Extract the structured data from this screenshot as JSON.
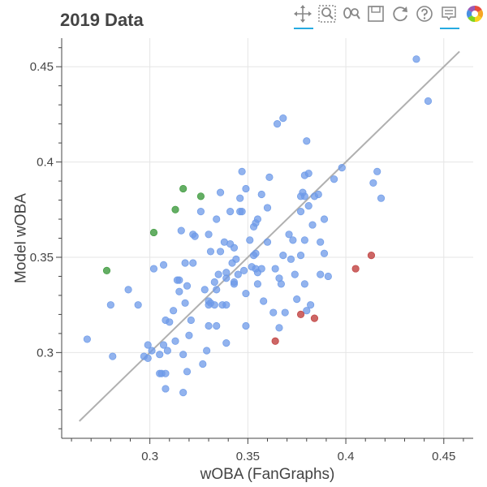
{
  "title": "2019 Data",
  "toolbar": {
    "tools": [
      {
        "icon": "pan-icon",
        "active": true
      },
      {
        "icon": "box-zoom-icon",
        "active": false
      },
      {
        "icon": "wheel-zoom-icon",
        "active": false
      },
      {
        "icon": "save-icon",
        "active": false
      },
      {
        "icon": "reset-icon",
        "active": false
      },
      {
        "icon": "help-icon",
        "active": false
      },
      {
        "icon": "hover-icon",
        "active": true
      },
      {
        "icon": "bokeh-logo-icon",
        "active": false
      }
    ]
  },
  "chart_data": {
    "type": "scatter",
    "title": "2019 Data",
    "xlabel": "wOBA (FanGraphs)",
    "ylabel": "Model wOBA",
    "xlim": [
      0.255,
      0.465
    ],
    "ylim": [
      0.255,
      0.465
    ],
    "xticks": [
      "0.3",
      "0.35",
      "0.4",
      "0.45"
    ],
    "yticks": [
      "0.3",
      "0.35",
      "0.4",
      "0.45"
    ],
    "grid": true,
    "legend": "none",
    "colors": {
      "blue": "#6d9ae8",
      "green": "#3d9a3d",
      "red": "#c0403f",
      "line": "#b0b0b0"
    },
    "reference_line": {
      "x": [
        0.264,
        0.458
      ],
      "y": [
        0.264,
        0.458
      ]
    },
    "series": [
      {
        "color": "blue",
        "points": [
          [
            0.268,
            0.307
          ],
          [
            0.28,
            0.325
          ],
          [
            0.281,
            0.298
          ],
          [
            0.289,
            0.333
          ],
          [
            0.294,
            0.325
          ],
          [
            0.297,
            0.298
          ],
          [
            0.299,
            0.304
          ],
          [
            0.299,
            0.297
          ],
          [
            0.301,
            0.301
          ],
          [
            0.302,
            0.344
          ],
          [
            0.305,
            0.299
          ],
          [
            0.305,
            0.289
          ],
          [
            0.306,
            0.289
          ],
          [
            0.307,
            0.346
          ],
          [
            0.307,
            0.304
          ],
          [
            0.308,
            0.289
          ],
          [
            0.308,
            0.281
          ],
          [
            0.308,
            0.317
          ],
          [
            0.309,
            0.301
          ],
          [
            0.31,
            0.316
          ],
          [
            0.312,
            0.322
          ],
          [
            0.313,
            0.306
          ],
          [
            0.314,
            0.338
          ],
          [
            0.315,
            0.338
          ],
          [
            0.315,
            0.332
          ],
          [
            0.316,
            0.364
          ],
          [
            0.317,
            0.299
          ],
          [
            0.317,
            0.279
          ],
          [
            0.318,
            0.347
          ],
          [
            0.318,
            0.326
          ],
          [
            0.319,
            0.335
          ],
          [
            0.319,
            0.29
          ],
          [
            0.32,
            0.309
          ],
          [
            0.321,
            0.317
          ],
          [
            0.322,
            0.362
          ],
          [
            0.322,
            0.347
          ],
          [
            0.323,
            0.361
          ],
          [
            0.326,
            0.374
          ],
          [
            0.327,
            0.294
          ],
          [
            0.328,
            0.333
          ],
          [
            0.329,
            0.301
          ],
          [
            0.33,
            0.325
          ],
          [
            0.33,
            0.327
          ],
          [
            0.33,
            0.314
          ],
          [
            0.33,
            0.362
          ],
          [
            0.331,
            0.326
          ],
          [
            0.331,
            0.353
          ],
          [
            0.333,
            0.337
          ],
          [
            0.333,
            0.325
          ],
          [
            0.334,
            0.37
          ],
          [
            0.334,
            0.333
          ],
          [
            0.334,
            0.314
          ],
          [
            0.335,
            0.341
          ],
          [
            0.336,
            0.353
          ],
          [
            0.336,
            0.384
          ],
          [
            0.337,
            0.325
          ],
          [
            0.338,
            0.358
          ],
          [
            0.339,
            0.305
          ],
          [
            0.339,
            0.342
          ],
          [
            0.339,
            0.339
          ],
          [
            0.339,
            0.325
          ],
          [
            0.341,
            0.357
          ],
          [
            0.341,
            0.374
          ],
          [
            0.342,
            0.347
          ],
          [
            0.343,
            0.337
          ],
          [
            0.343,
            0.355
          ],
          [
            0.343,
            0.336
          ],
          [
            0.344,
            0.349
          ],
          [
            0.345,
            0.341
          ],
          [
            0.346,
            0.374
          ],
          [
            0.346,
            0.381
          ],
          [
            0.347,
            0.374
          ],
          [
            0.347,
            0.395
          ],
          [
            0.348,
            0.343
          ],
          [
            0.349,
            0.331
          ],
          [
            0.349,
            0.314
          ],
          [
            0.349,
            0.386
          ],
          [
            0.351,
            0.359
          ],
          [
            0.352,
            0.345
          ],
          [
            0.353,
            0.351
          ],
          [
            0.353,
            0.366
          ],
          [
            0.354,
            0.344
          ],
          [
            0.354,
            0.368
          ],
          [
            0.354,
            0.352
          ],
          [
            0.355,
            0.342
          ],
          [
            0.355,
            0.336
          ],
          [
            0.355,
            0.37
          ],
          [
            0.357,
            0.383
          ],
          [
            0.357,
            0.344
          ],
          [
            0.358,
            0.327
          ],
          [
            0.36,
            0.358
          ],
          [
            0.36,
            0.376
          ],
          [
            0.361,
            0.392
          ],
          [
            0.363,
            0.321
          ],
          [
            0.364,
            0.344
          ],
          [
            0.365,
            0.42
          ],
          [
            0.366,
            0.339
          ],
          [
            0.366,
            0.313
          ],
          [
            0.367,
            0.336
          ],
          [
            0.368,
            0.423
          ],
          [
            0.368,
            0.351
          ],
          [
            0.369,
            0.321
          ],
          [
            0.371,
            0.362
          ],
          [
            0.372,
            0.349
          ],
          [
            0.373,
            0.359
          ],
          [
            0.374,
            0.341
          ],
          [
            0.375,
            0.328
          ],
          [
            0.377,
            0.374
          ],
          [
            0.377,
            0.382
          ],
          [
            0.377,
            0.351
          ],
          [
            0.378,
            0.384
          ],
          [
            0.379,
            0.359
          ],
          [
            0.379,
            0.336
          ],
          [
            0.379,
            0.382
          ],
          [
            0.379,
            0.393
          ],
          [
            0.38,
            0.411
          ],
          [
            0.38,
            0.322
          ],
          [
            0.381,
            0.377
          ],
          [
            0.381,
            0.394
          ],
          [
            0.382,
            0.325
          ],
          [
            0.383,
            0.367
          ],
          [
            0.384,
            0.382
          ],
          [
            0.386,
            0.383
          ],
          [
            0.387,
            0.358
          ],
          [
            0.387,
            0.341
          ],
          [
            0.389,
            0.352
          ],
          [
            0.389,
            0.37
          ],
          [
            0.391,
            0.34
          ],
          [
            0.394,
            0.391
          ],
          [
            0.398,
            0.397
          ],
          [
            0.414,
            0.389
          ],
          [
            0.416,
            0.395
          ],
          [
            0.418,
            0.381
          ],
          [
            0.436,
            0.454
          ],
          [
            0.442,
            0.432
          ]
        ]
      },
      {
        "color": "green",
        "points": [
          [
            0.278,
            0.343
          ],
          [
            0.302,
            0.363
          ],
          [
            0.313,
            0.375
          ],
          [
            0.317,
            0.386
          ],
          [
            0.326,
            0.382
          ]
        ]
      },
      {
        "color": "red",
        "points": [
          [
            0.364,
            0.306
          ],
          [
            0.377,
            0.32
          ],
          [
            0.384,
            0.318
          ],
          [
            0.405,
            0.344
          ],
          [
            0.413,
            0.351
          ]
        ]
      }
    ]
  }
}
